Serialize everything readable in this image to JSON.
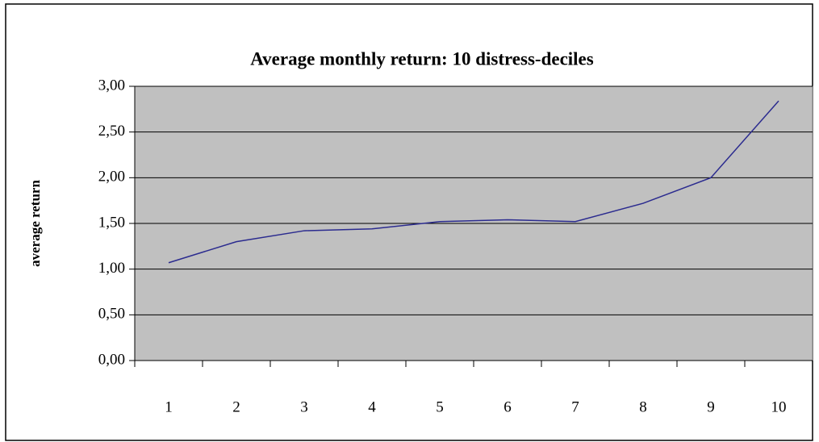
{
  "chart_data": {
    "type": "line",
    "title": "Average monthly return: 10 distress-deciles",
    "y_label": "average return",
    "categories": [
      "1",
      "2",
      "3",
      "4",
      "5",
      "6",
      "7",
      "8",
      "9",
      "10"
    ],
    "series": [
      {
        "name": "average return",
        "color": "#2b2b8f",
        "values": [
          1.07,
          1.3,
          1.42,
          1.44,
          1.52,
          1.54,
          1.52,
          1.72,
          2.0,
          2.84
        ]
      }
    ],
    "ylim": [
      0,
      3
    ],
    "yticks": [
      {
        "value": 0,
        "label": "0,00"
      },
      {
        "value": 0.5,
        "label": "0,50"
      },
      {
        "value": 1,
        "label": "1,00"
      },
      {
        "value": 1.5,
        "label": "1,50"
      },
      {
        "value": 2,
        "label": "2,00"
      },
      {
        "value": 2.5,
        "label": "2,50"
      },
      {
        "value": 3,
        "label": "3,00"
      }
    ],
    "grid": true,
    "plot_background": "#c0c0c0"
  }
}
